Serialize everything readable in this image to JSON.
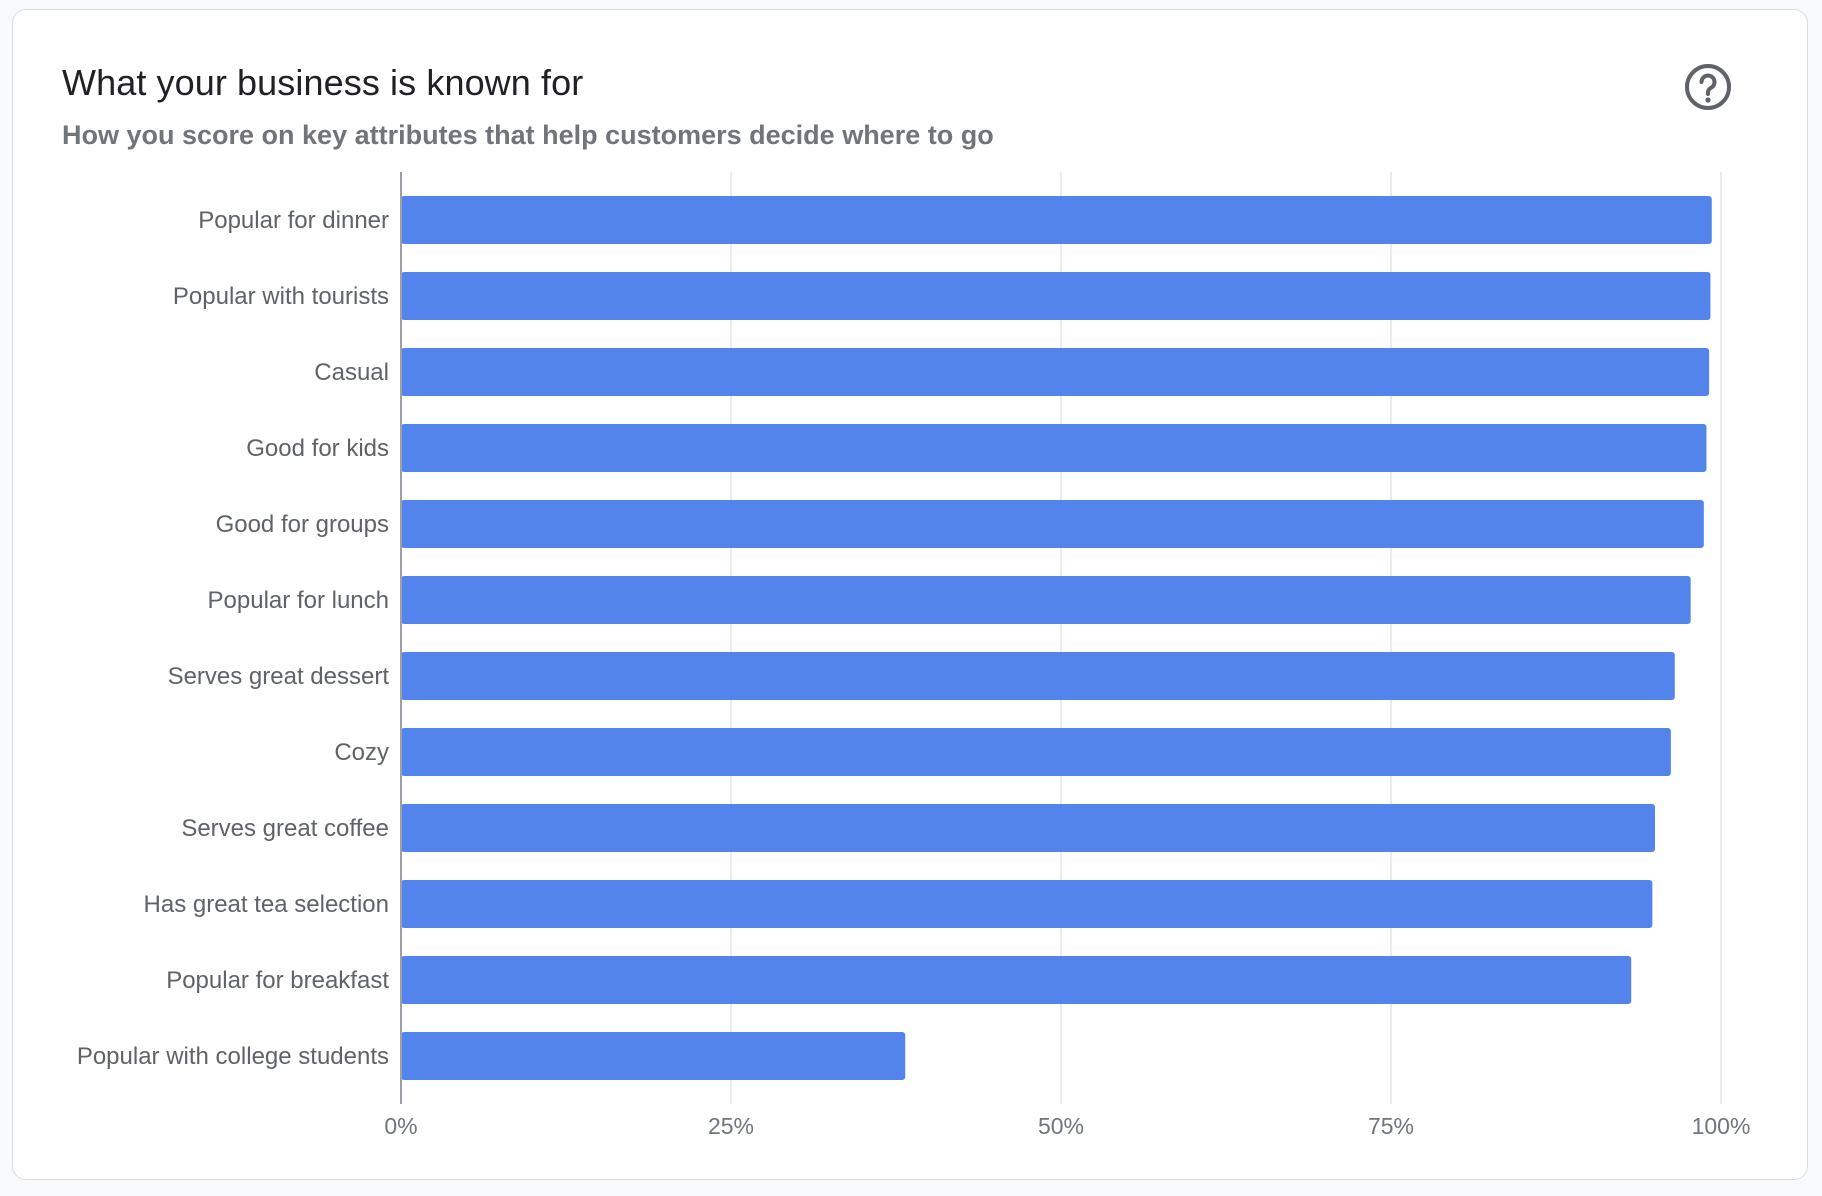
{
  "card": {
    "title": "What your business is known for",
    "subtitle": "How you score on key attributes that help customers decide where to go",
    "help_icon": "question-circle-icon"
  },
  "colors": {
    "bar": "#5284ec",
    "grid": "#e6e6e6",
    "axis": "#9aa0a6"
  },
  "chart_data": {
    "type": "bar",
    "orientation": "horizontal",
    "categories": [
      "Popular for dinner",
      "Popular with tourists",
      "Casual",
      "Good for kids",
      "Good for groups",
      "Popular for lunch",
      "Serves great dessert",
      "Cozy",
      "Serves great coffee",
      "Has great tea selection",
      "Popular for breakfast",
      "Popular with college students"
    ],
    "values": [
      99.3,
      99.2,
      99.1,
      98.9,
      98.7,
      97.7,
      96.5,
      96.2,
      95.0,
      94.8,
      93.2,
      38.2
    ],
    "xlim": [
      0,
      100
    ],
    "xticks": [
      0,
      25,
      50,
      75,
      100
    ],
    "xtick_labels": [
      "0%",
      "25%",
      "50%",
      "75%",
      "100%"
    ],
    "grid": true,
    "legend": "none"
  }
}
